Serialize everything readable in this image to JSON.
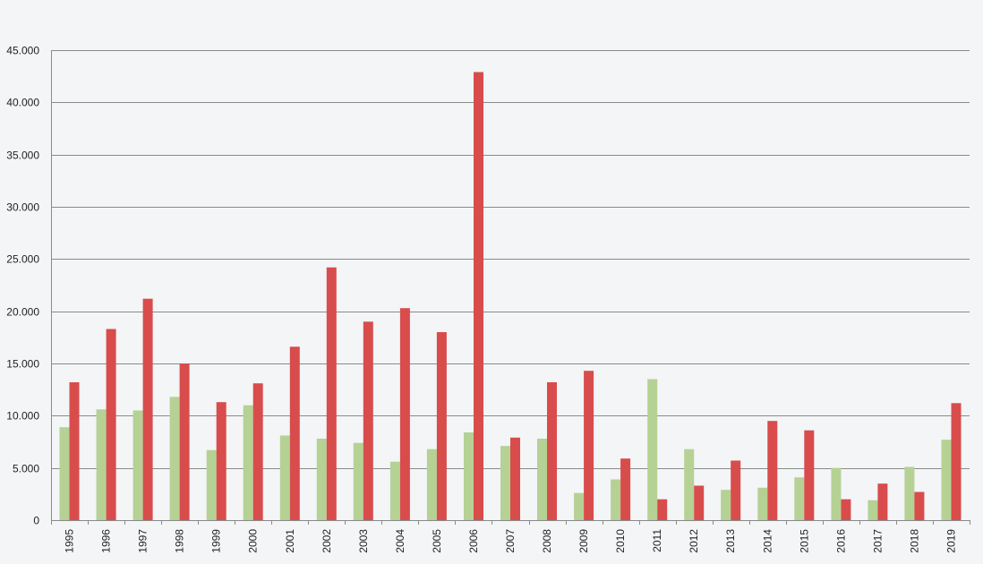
{
  "chart_data": {
    "type": "bar",
    "title": "",
    "xlabel": "",
    "ylabel": "",
    "categories": [
      "1995",
      "1996",
      "1997",
      "1998",
      "1999",
      "2000",
      "2001",
      "2002",
      "2003",
      "2004",
      "2005",
      "2006",
      "2007",
      "2008",
      "2009",
      "2010",
      "2011",
      "2012",
      "2013",
      "2014",
      "2015",
      "2016",
      "2017",
      "2018",
      "2019"
    ],
    "series": [
      {
        "color": "#b5d194",
        "values": [
          8900,
          10600,
          10500,
          11800,
          6700,
          11000,
          8100,
          7800,
          7400,
          5600,
          6800,
          8400,
          7100,
          7800,
          2600,
          3900,
          13500,
          6800,
          2900,
          3100,
          4100,
          5000,
          1900,
          5100,
          7700
        ]
      },
      {
        "color": "#d94c4c",
        "values": [
          13200,
          18300,
          21200,
          15000,
          11300,
          13100,
          16600,
          24200,
          19000,
          20300,
          18000,
          42900,
          7900,
          13200,
          14300,
          5900,
          2000,
          3300,
          5700,
          9500,
          8600,
          2000,
          3500,
          2700,
          11200
        ]
      }
    ],
    "ylim": [
      0,
      45000
    ],
    "y_ticks": [
      0,
      5000,
      10000,
      15000,
      20000,
      25000,
      30000,
      35000,
      40000,
      45000
    ],
    "y_tick_labels": [
      "0",
      "5.000",
      "10.000",
      "15.000",
      "20.000",
      "25.000",
      "30.000",
      "35.000",
      "40.000",
      "45.000"
    ],
    "grid": true,
    "legend": "none"
  }
}
